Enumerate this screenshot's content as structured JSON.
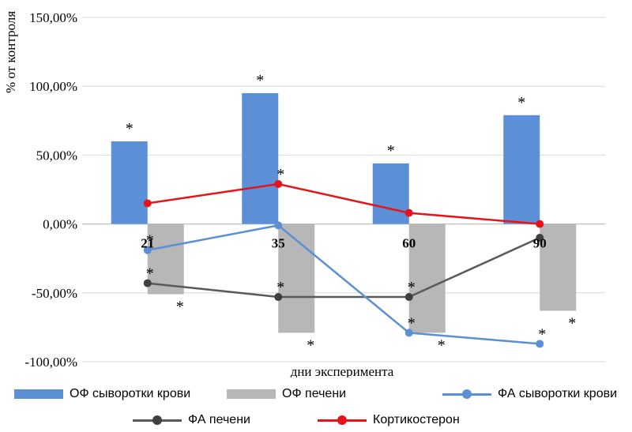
{
  "chart_data": {
    "type": "bar",
    "xlabel": "дни эксперимента",
    "ylabel": "% от контроля",
    "ylim": [
      -100,
      150
    ],
    "yticks": [
      {
        "value": 150,
        "label": "150,00%"
      },
      {
        "value": 100,
        "label": "100,00%"
      },
      {
        "value": 50,
        "label": "50,00%"
      },
      {
        "value": 0,
        "label": "0,00%"
      },
      {
        "value": -50,
        "label": "-50,00%"
      },
      {
        "value": -100,
        "label": "-100,00%"
      }
    ],
    "categories": [
      "21",
      "35",
      "60",
      "90"
    ],
    "grid": true,
    "legend_position": "bottom",
    "bar_series": [
      {
        "name": "ОФ сыворотки крови",
        "color": "#5B8FD6",
        "values": [
          60,
          95,
          44,
          79
        ],
        "stars": [
          "*",
          "*",
          "*",
          "*"
        ]
      },
      {
        "name": "ОФ печени",
        "color": "#B7B7B7",
        "values": [
          -51,
          -79,
          -79,
          -63
        ],
        "stars": [
          "*",
          "*",
          "*",
          "*"
        ]
      }
    ],
    "line_series": [
      {
        "name": "ФА сыворотки крови",
        "color": "#5B8FD6",
        "values": [
          -19,
          -1,
          -79,
          -87
        ],
        "stars": [
          "*",
          "",
          "*",
          "*"
        ]
      },
      {
        "name": "ФА печени",
        "color": "#595959",
        "values": [
          -43,
          -53,
          -53,
          -10
        ],
        "stars": [
          "*",
          "*",
          "*",
          ""
        ]
      },
      {
        "name": "Кортикостерон",
        "color": "#E8121A",
        "values": [
          15,
          29,
          8,
          0
        ],
        "stars": [
          "",
          "*",
          "",
          ""
        ]
      }
    ]
  }
}
